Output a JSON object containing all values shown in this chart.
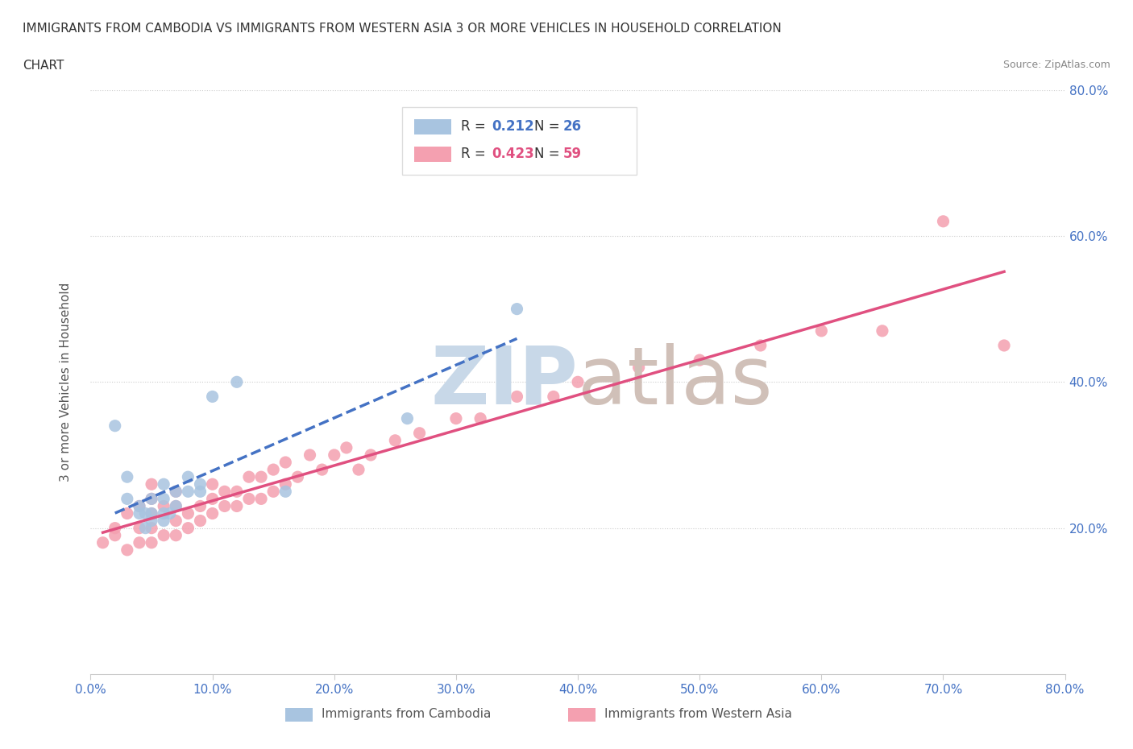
{
  "title_line1": "IMMIGRANTS FROM CAMBODIA VS IMMIGRANTS FROM WESTERN ASIA 3 OR MORE VEHICLES IN HOUSEHOLD CORRELATION",
  "title_line2": "CHART",
  "source": "Source: ZipAtlas.com",
  "ylabel": "3 or more Vehicles in Household",
  "xlim": [
    0.0,
    0.8
  ],
  "ylim": [
    0.0,
    0.8
  ],
  "xtick_labels": [
    "0.0%",
    "10.0%",
    "20.0%",
    "30.0%",
    "40.0%",
    "50.0%",
    "60.0%",
    "70.0%",
    "80.0%"
  ],
  "ytick_labels": [
    "20.0%",
    "40.0%",
    "60.0%",
    "80.0%"
  ],
  "ytick_positions": [
    0.2,
    0.4,
    0.6,
    0.8
  ],
  "grid_color": "#cccccc",
  "legend_r_cambodia": "0.212",
  "legend_n_cambodia": "26",
  "legend_r_western_asia": "0.423",
  "legend_n_western_asia": "59",
  "color_cambodia": "#a8c4e0",
  "color_western_asia": "#f4a0b0",
  "line_color_cambodia": "#4472c4",
  "line_color_western_asia": "#e05080",
  "cambodia_x": [
    0.02,
    0.03,
    0.03,
    0.04,
    0.04,
    0.045,
    0.045,
    0.05,
    0.05,
    0.05,
    0.06,
    0.06,
    0.06,
    0.06,
    0.065,
    0.07,
    0.07,
    0.08,
    0.08,
    0.09,
    0.09,
    0.1,
    0.12,
    0.16,
    0.26,
    0.35
  ],
  "cambodia_y": [
    0.34,
    0.24,
    0.27,
    0.22,
    0.23,
    0.2,
    0.22,
    0.21,
    0.22,
    0.24,
    0.21,
    0.22,
    0.24,
    0.26,
    0.22,
    0.23,
    0.25,
    0.25,
    0.27,
    0.25,
    0.26,
    0.38,
    0.4,
    0.25,
    0.35,
    0.5
  ],
  "western_asia_x": [
    0.01,
    0.02,
    0.02,
    0.03,
    0.03,
    0.04,
    0.04,
    0.04,
    0.05,
    0.05,
    0.05,
    0.05,
    0.05,
    0.06,
    0.06,
    0.07,
    0.07,
    0.07,
    0.07,
    0.08,
    0.08,
    0.09,
    0.09,
    0.1,
    0.1,
    0.1,
    0.11,
    0.11,
    0.12,
    0.12,
    0.13,
    0.13,
    0.14,
    0.14,
    0.15,
    0.15,
    0.16,
    0.16,
    0.17,
    0.18,
    0.19,
    0.2,
    0.21,
    0.22,
    0.23,
    0.25,
    0.27,
    0.3,
    0.32,
    0.35,
    0.38,
    0.4,
    0.45,
    0.5,
    0.55,
    0.6,
    0.65,
    0.7,
    0.75
  ],
  "western_asia_y": [
    0.18,
    0.19,
    0.2,
    0.17,
    0.22,
    0.18,
    0.2,
    0.23,
    0.18,
    0.2,
    0.22,
    0.24,
    0.26,
    0.19,
    0.23,
    0.19,
    0.21,
    0.23,
    0.25,
    0.2,
    0.22,
    0.21,
    0.23,
    0.22,
    0.24,
    0.26,
    0.23,
    0.25,
    0.23,
    0.25,
    0.24,
    0.27,
    0.24,
    0.27,
    0.25,
    0.28,
    0.26,
    0.29,
    0.27,
    0.3,
    0.28,
    0.3,
    0.31,
    0.28,
    0.3,
    0.32,
    0.33,
    0.35,
    0.35,
    0.38,
    0.38,
    0.4,
    0.42,
    0.43,
    0.45,
    0.47,
    0.47,
    0.62,
    0.45
  ],
  "background_color": "#ffffff",
  "title_color": "#333333",
  "tick_color": "#4472c4",
  "watermark_color_zip": "#c8d8e8",
  "watermark_color_atlas": "#d0c0b8"
}
